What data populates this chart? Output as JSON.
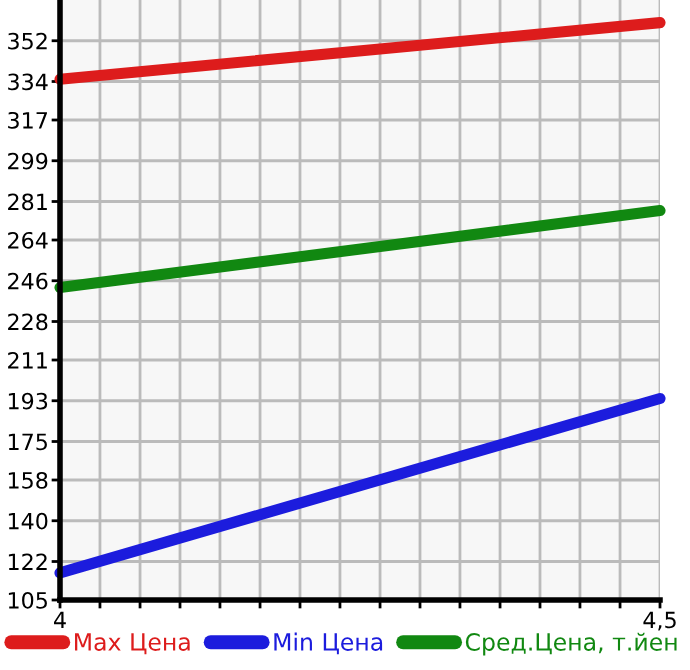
{
  "chart_data": {
    "type": "line",
    "x": [
      4,
      4.5
    ],
    "series": [
      {
        "name": "Max Цена",
        "color": "#dd1c1c",
        "values": [
          335,
          360
        ]
      },
      {
        "name": "Min Цена",
        "color": "#1c1cdd",
        "values": [
          117,
          194
        ]
      },
      {
        "name": "Сред.Цена, т.йен",
        "color": "#118811",
        "values": [
          243,
          277
        ]
      }
    ],
    "xlim": [
      4,
      4.5
    ],
    "xticks": [
      4,
      {
        "value": 4.0333,
        "label": null
      },
      {
        "value": 4.0667,
        "label": null
      },
      {
        "value": 4.1,
        "label": null
      },
      {
        "value": 4.1333,
        "label": null
      },
      {
        "value": 4.1667,
        "label": null
      },
      {
        "value": 4.2,
        "label": null
      },
      {
        "value": 4.2333,
        "label": null
      },
      {
        "value": 4.2667,
        "label": null
      },
      {
        "value": 4.3,
        "label": null
      },
      {
        "value": 4.3333,
        "label": null
      },
      {
        "value": 4.3667,
        "label": null
      },
      {
        "value": 4.4,
        "label": null
      },
      {
        "value": 4.4333,
        "label": null
      },
      {
        "value": 4.4667,
        "label": null
      },
      {
        "value": 4.5,
        "label": "4,5"
      }
    ],
    "ylim": [
      105,
      370
    ],
    "yticks": [
      105,
      122,
      140,
      158,
      175,
      193,
      211,
      228,
      246,
      264,
      281,
      299,
      317,
      334,
      352
    ],
    "grid": true,
    "legend": "bottom",
    "marker": "none",
    "line_style": "solid"
  }
}
